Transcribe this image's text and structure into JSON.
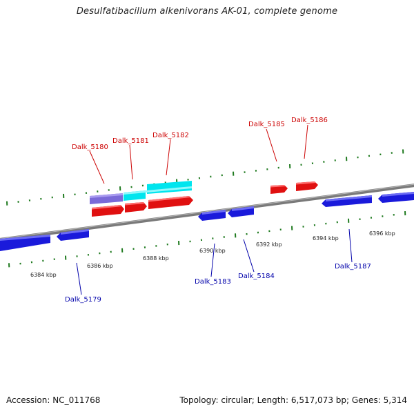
{
  "title": "Desulfatibacillum alkenivorans AK-01, complete genome",
  "footer": {
    "accession": "Accession: NC_011768",
    "stats": "Topology: circular; Length: 6,517,073 bp; Genes: 5,314"
  },
  "colors": {
    "backbone": "#808080",
    "tick": "#1f7a1f",
    "forward_gene": "#e01010",
    "forward_label": "#cc0000",
    "reverse_gene": "#1a1adb",
    "reverse_label": "#0000aa",
    "cyan_feature": "#00e5ee",
    "purple_feature": "#7a6ad8"
  },
  "scale_labels": [
    "6384 kbp",
    "6386 kbp",
    "6388 kbp",
    "6390 kbp",
    "6392 kbp",
    "6394 kbp",
    "6396 kbp"
  ],
  "forward_genes": [
    "Dalk_5180",
    "Dalk_5181",
    "Dalk_5182",
    "Dalk_5185",
    "Dalk_5186"
  ],
  "reverse_genes": [
    "Dalk_5179",
    "Dalk_5183",
    "Dalk_5184",
    "Dalk_5187"
  ]
}
